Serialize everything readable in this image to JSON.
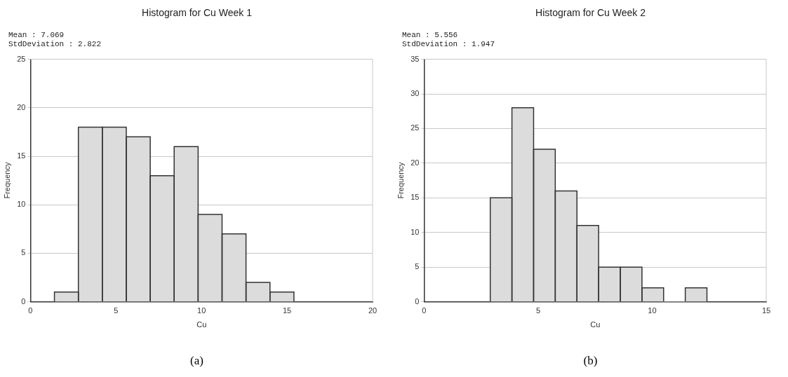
{
  "chart_data": [
    {
      "type": "histogram",
      "title": "Histogram for Cu Week 1",
      "xlabel": "Cu",
      "ylabel": "Frequency",
      "bins": [
        1.4,
        2.8,
        4.2,
        5.6,
        7.0,
        8.4,
        9.8,
        11.2,
        12.6,
        14.0,
        15.4
      ],
      "values": [
        1,
        18,
        18,
        17,
        13,
        16,
        9,
        7,
        2,
        1
      ],
      "color": "#dcdcdc",
      "xlim": [
        0,
        20
      ],
      "xticks": [
        0,
        5,
        10,
        15,
        20
      ],
      "ylim": [
        0,
        25
      ],
      "yticks": [
        0,
        5,
        10,
        15,
        20,
        25
      ],
      "grid": "y",
      "legend": false,
      "annotations": [
        "Mean : 7.069",
        "StdDeviation : 2.822",
        "(a)"
      ]
    },
    {
      "type": "histogram",
      "title": "Histogram for Cu Week 2",
      "xlabel": "Cu",
      "ylabel": "Frequency",
      "bins": [
        2.9,
        3.85,
        4.8,
        5.75,
        6.7,
        7.65,
        8.6,
        9.55,
        10.5,
        11.45,
        12.4
      ],
      "values": [
        15,
        28,
        22,
        16,
        11,
        5,
        5,
        2,
        0,
        2
      ],
      "color": "#dcdcdc",
      "xlim": [
        0,
        15
      ],
      "xticks": [
        0,
        5,
        10,
        15
      ],
      "ylim": [
        0,
        35
      ],
      "yticks": [
        0,
        5,
        10,
        15,
        20,
        25,
        30,
        35
      ],
      "grid": "y",
      "legend": false,
      "annotations": [
        "Mean : 5.556",
        "StdDeviation : 1.947",
        "(b)"
      ]
    }
  ]
}
